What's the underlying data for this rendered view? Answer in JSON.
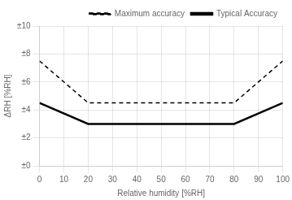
{
  "chart_data": {
    "type": "line",
    "x": [
      0,
      20,
      80,
      100
    ],
    "series": [
      {
        "name": "Maximum accuracy",
        "color": "#000000",
        "line_style": "dashed",
        "values": [
          7.5,
          4.5,
          4.5,
          7.5
        ]
      },
      {
        "name": "Typical Accuracy",
        "color": "#000000",
        "line_style": "solid",
        "values": [
          4.5,
          3.0,
          3.0,
          4.5
        ]
      }
    ],
    "xlabel": "Relative humidity [%RH]",
    "ylabel": "ΔRH [%RH]",
    "xlim": [
      0,
      100
    ],
    "ylim": [
      0,
      10
    ],
    "xticks": [
      0,
      10,
      20,
      30,
      40,
      50,
      60,
      70,
      80,
      90,
      100
    ],
    "yticks": [
      {
        "value": 0,
        "label": "±0"
      },
      {
        "value": 2,
        "label": "±2"
      },
      {
        "value": 4,
        "label": "±4"
      },
      {
        "value": 6,
        "label": "±6"
      },
      {
        "value": 8,
        "label": "±8"
      },
      {
        "value": 10,
        "label": "±10"
      }
    ],
    "grid": true,
    "legend": "upper right"
  }
}
